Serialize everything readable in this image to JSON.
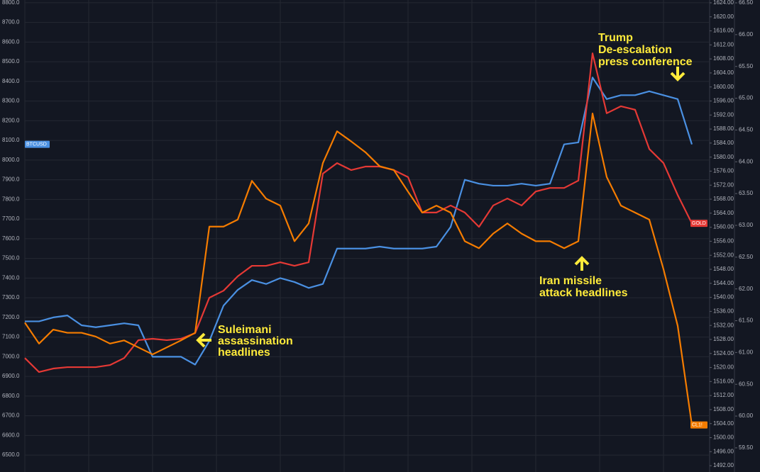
{
  "chart_data": {
    "type": "line",
    "categories": [
      null,
      null,
      null,
      null,
      null,
      null,
      null,
      null,
      null,
      null,
      null,
      null,
      null,
      null,
      null,
      null,
      null,
      null,
      null,
      null,
      null,
      null,
      null,
      null,
      null,
      null,
      null,
      null,
      null,
      null,
      null,
      null,
      null,
      null,
      null,
      null,
      null,
      null,
      null,
      null,
      null,
      null,
      null,
      null,
      null,
      null,
      null,
      null
    ],
    "series": [
      {
        "name": "BTCUSD",
        "color": "#4a90e2",
        "axis": "y",
        "values": [
          7180,
          7180,
          7200,
          7210,
          7160,
          7150,
          7160,
          7170,
          7160,
          7000,
          7000,
          7000,
          6960,
          7080,
          7260,
          7340,
          7390,
          7370,
          7400,
          7380,
          7350,
          7370,
          7550,
          7550,
          7550,
          7560,
          7550,
          7550,
          7550,
          7560,
          7660,
          7900,
          7880,
          7870,
          7870,
          7880,
          7870,
          7880,
          8080,
          8090,
          8420,
          8310,
          8330,
          8330,
          8350,
          8330,
          8310,
          8080
        ]
      },
      {
        "name": "GOLD",
        "color": "#e53935",
        "axis": "y2",
        "values": [
          1522.7,
          1518.7,
          1519.7,
          1520.1,
          1520.1,
          1520.1,
          1520.7,
          1522.7,
          1527.8,
          1528.2,
          1527.8,
          1528.2,
          1529.8,
          1539.9,
          1541.9,
          1546.0,
          1549.0,
          1549.0,
          1550.0,
          1549.0,
          1550.0,
          1575.3,
          1578.3,
          1576.3,
          1577.3,
          1577.3,
          1576.3,
          1574.3,
          1564.2,
          1564.2,
          1566.2,
          1564.2,
          1560.1,
          1566.2,
          1568.2,
          1566.2,
          1570.2,
          1571.2,
          1571.2,
          1573.3,
          1609.6,
          1592.5,
          1594.5,
          1593.5,
          1582.3,
          1578.3,
          1569.2,
          1561.1
        ]
      },
      {
        "name": "CL1!",
        "color": "#f57c00",
        "axis": "y3",
        "values": [
          61.47,
          61.14,
          61.36,
          61.31,
          61.31,
          61.25,
          61.14,
          61.19,
          61.08,
          60.97,
          61.08,
          61.19,
          61.31,
          62.98,
          62.98,
          63.09,
          63.7,
          63.42,
          63.31,
          62.75,
          63.03,
          63.98,
          64.48,
          64.32,
          64.15,
          63.93,
          63.87,
          63.53,
          63.2,
          63.31,
          63.2,
          62.75,
          62.64,
          62.87,
          63.03,
          62.87,
          62.75,
          62.75,
          62.64,
          62.75,
          64.76,
          63.76,
          63.31,
          63.2,
          63.09,
          62.31,
          61.42,
          59.86
        ]
      }
    ],
    "ylim": [
      6414,
      8814
    ],
    "yticks": [
      {
        "value": 8800,
        "label": "8800.0"
      },
      {
        "value": 8700,
        "label": "8700.0"
      },
      {
        "value": 8600,
        "label": "8600.0"
      },
      {
        "value": 8500,
        "label": "8500.0"
      },
      {
        "value": 8400,
        "label": "8400.0"
      },
      {
        "value": 8300,
        "label": "8300.0"
      },
      {
        "value": 8200,
        "label": "8200.0"
      },
      {
        "value": 8100,
        "label": "8100.0"
      },
      {
        "value": 8000,
        "label": "8000.0"
      },
      {
        "value": 7900,
        "label": "7900.0"
      },
      {
        "value": 7800,
        "label": "7800.0"
      },
      {
        "value": 7700,
        "label": "7700.0"
      },
      {
        "value": 7600,
        "label": "7600.0"
      },
      {
        "value": 7500,
        "label": "7500.0"
      },
      {
        "value": 7400,
        "label": "7400.0"
      },
      {
        "value": 7300,
        "label": "7300.0"
      },
      {
        "value": 7200,
        "label": "7200.0"
      },
      {
        "value": 7100,
        "label": "7100.0"
      },
      {
        "value": 7000,
        "label": "7000.0"
      },
      {
        "value": 6900,
        "label": "6900.0"
      },
      {
        "value": 6800,
        "label": "6800.0"
      },
      {
        "value": 6700,
        "label": "6700.0"
      },
      {
        "value": 6600,
        "label": "6600.0"
      },
      {
        "value": 6500,
        "label": "6500.0"
      }
    ],
    "y2lim": [
      1490.2,
      1624.8
    ],
    "y2ticks": [
      {
        "value": 1624,
        "label": "1624.00"
      },
      {
        "value": 1620,
        "label": "1620.00"
      },
      {
        "value": 1616,
        "label": "1616.00"
      },
      {
        "value": 1612,
        "label": "1612.00"
      },
      {
        "value": 1608,
        "label": "1608.00"
      },
      {
        "value": 1604,
        "label": "1604.00"
      },
      {
        "value": 1600,
        "label": "1600.00"
      },
      {
        "value": 1596,
        "label": "1596.00"
      },
      {
        "value": 1592,
        "label": "1592.00"
      },
      {
        "value": 1588,
        "label": "1588.00"
      },
      {
        "value": 1584,
        "label": "1584.00"
      },
      {
        "value": 1580,
        "label": "1580.00"
      },
      {
        "value": 1576,
        "label": "1576.00"
      },
      {
        "value": 1572,
        "label": "1572.00"
      },
      {
        "value": 1568,
        "label": "1568.00"
      },
      {
        "value": 1564,
        "label": "1564.00"
      },
      {
        "value": 1560,
        "label": "1560.00"
      },
      {
        "value": 1556,
        "label": "1556.00"
      },
      {
        "value": 1552,
        "label": "1552.00"
      },
      {
        "value": 1548,
        "label": "1548.00"
      },
      {
        "value": 1544,
        "label": "1544.00"
      },
      {
        "value": 1540,
        "label": "1540.00"
      },
      {
        "value": 1536,
        "label": "1536.00"
      },
      {
        "value": 1532,
        "label": "1532.00"
      },
      {
        "value": 1528,
        "label": "1528.00"
      },
      {
        "value": 1524,
        "label": "1524.00"
      },
      {
        "value": 1520,
        "label": "1520.00"
      },
      {
        "value": 1516,
        "label": "1516.00"
      },
      {
        "value": 1512,
        "label": "1512.00"
      },
      {
        "value": 1508,
        "label": "1508.00"
      },
      {
        "value": 1504,
        "label": "1504.00"
      },
      {
        "value": 1500,
        "label": "1500.00"
      },
      {
        "value": 1496,
        "label": "1496.00"
      },
      {
        "value": 1492,
        "label": "1492.00"
      }
    ],
    "y3lim": [
      59.12,
      66.545
    ],
    "y3ticks": [
      {
        "value": 66.5,
        "label": "66.50"
      },
      {
        "value": 66,
        "label": "66.00"
      },
      {
        "value": 65.5,
        "label": "65.50"
      },
      {
        "value": 65,
        "label": "65.00"
      },
      {
        "value": 64.5,
        "label": "64.50"
      },
      {
        "value": 64,
        "label": "64.00"
      },
      {
        "value": 63.5,
        "label": "63.50"
      },
      {
        "value": 63,
        "label": "63.00"
      },
      {
        "value": 62.5,
        "label": "62.50"
      },
      {
        "value": 62,
        "label": "62.00"
      },
      {
        "value": 61.5,
        "label": "61.50"
      },
      {
        "value": 61,
        "label": "61.00"
      },
      {
        "value": 60.5,
        "label": "60.50"
      },
      {
        "value": 60,
        "label": "60.00"
      },
      {
        "value": 59.5,
        "label": "59.50"
      }
    ],
    "grid": true,
    "annotations": [
      {
        "lines": [
          "Trump",
          "De-escalation",
          "press conference"
        ]
      },
      {
        "lines": [
          "Iran missile",
          "attack headlines"
        ]
      },
      {
        "lines": [
          "Suleimani",
          "assassination",
          "headlines"
        ]
      }
    ]
  }
}
